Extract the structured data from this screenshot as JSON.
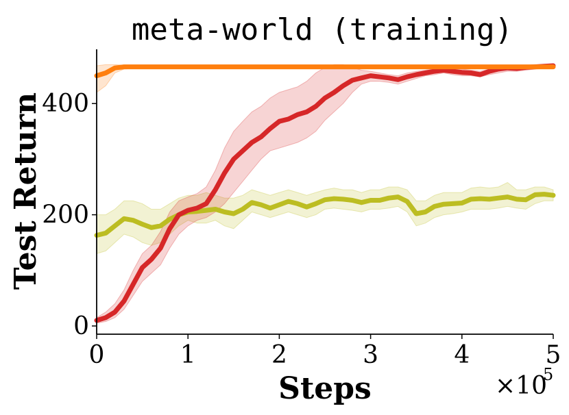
{
  "chart_data": {
    "type": "line",
    "title": "meta-world (training)",
    "xlabel": "Steps",
    "ylabel": "Test Return",
    "x_multiplier": "×10",
    "x_multiplier_exp": "5",
    "xlim": [
      0,
      500000
    ],
    "ylim": [
      0,
      500
    ],
    "x_ticks": [
      0,
      100000,
      200000,
      300000,
      400000,
      500000
    ],
    "x_tick_labels": [
      "0",
      "1",
      "2",
      "3",
      "4",
      "5"
    ],
    "y_ticks": [
      0,
      200,
      400
    ],
    "y_tick_labels": [
      "0",
      "200",
      "400"
    ],
    "grid": false,
    "legend": "none",
    "series": [
      {
        "color": "#bcbd22",
        "x": [
          0,
          10000,
          20000,
          30000,
          40000,
          50000,
          60000,
          70000,
          80000,
          90000,
          100000,
          110000,
          120000,
          130000,
          140000,
          150000,
          160000,
          170000,
          180000,
          190000,
          200000,
          210000,
          220000,
          230000,
          240000,
          250000,
          260000,
          270000,
          280000,
          290000,
          300000,
          310000,
          320000,
          330000,
          340000,
          350000,
          360000,
          370000,
          380000,
          390000,
          400000,
          410000,
          420000,
          430000,
          440000,
          450000,
          460000,
          470000,
          480000,
          490000,
          500000
        ],
        "y": [
          163,
          167,
          180,
          193,
          190,
          183,
          177,
          180,
          192,
          200,
          205,
          206,
          208,
          210,
          205,
          202,
          210,
          222,
          218,
          212,
          218,
          224,
          220,
          214,
          220,
          227,
          229,
          228,
          226,
          222,
          226,
          226,
          230,
          232,
          224,
          202,
          205,
          215,
          219,
          220,
          221,
          228,
          229,
          228,
          230,
          232,
          228,
          227,
          236,
          237,
          235
        ],
        "lower": [
          130,
          135,
          150,
          165,
          160,
          150,
          145,
          150,
          165,
          180,
          190,
          185,
          185,
          190,
          180,
          175,
          190,
          205,
          200,
          195,
          200,
          205,
          200,
          195,
          200,
          210,
          212,
          210,
          208,
          205,
          210,
          210,
          212,
          215,
          205,
          180,
          185,
          195,
          200,
          202,
          205,
          210,
          210,
          210,
          212,
          215,
          212,
          210,
          220,
          225,
          225
        ],
        "upper": [
          200,
          200,
          210,
          225,
          225,
          220,
          210,
          210,
          220,
          230,
          235,
          235,
          240,
          235,
          230,
          230,
          235,
          245,
          240,
          235,
          240,
          245,
          240,
          235,
          240,
          245,
          248,
          245,
          245,
          240,
          245,
          245,
          250,
          250,
          245,
          225,
          225,
          235,
          240,
          240,
          240,
          248,
          250,
          248,
          250,
          258,
          245,
          245,
          250,
          250,
          245
        ]
      },
      {
        "color": "#d62728",
        "x": [
          0,
          10000,
          20000,
          30000,
          40000,
          50000,
          60000,
          70000,
          80000,
          90000,
          100000,
          110000,
          120000,
          130000,
          140000,
          150000,
          160000,
          170000,
          180000,
          190000,
          200000,
          210000,
          220000,
          230000,
          240000,
          250000,
          260000,
          270000,
          280000,
          290000,
          300000,
          310000,
          320000,
          330000,
          340000,
          350000,
          360000,
          370000,
          380000,
          390000,
          400000,
          410000,
          420000,
          430000,
          440000,
          450000,
          460000,
          470000,
          480000,
          490000,
          500000
        ],
        "y": [
          10,
          15,
          25,
          45,
          75,
          105,
          120,
          140,
          175,
          200,
          208,
          212,
          220,
          245,
          275,
          300,
          315,
          330,
          340,
          355,
          368,
          372,
          380,
          385,
          395,
          410,
          420,
          432,
          442,
          446,
          450,
          448,
          446,
          443,
          448,
          452,
          455,
          458,
          460,
          458,
          456,
          455,
          452,
          458,
          462,
          464,
          463,
          465,
          466,
          467,
          468
        ],
        "lower": [
          5,
          8,
          15,
          30,
          55,
          80,
          95,
          110,
          140,
          165,
          180,
          190,
          195,
          205,
          220,
          240,
          260,
          280,
          300,
          315,
          320,
          325,
          330,
          338,
          350,
          370,
          385,
          400,
          420,
          435,
          440,
          440,
          438,
          435,
          440,
          445,
          450,
          452,
          455,
          452,
          450,
          450,
          448,
          452,
          455,
          458,
          458,
          460,
          462,
          463,
          464
        ],
        "upper": [
          15,
          25,
          40,
          65,
          100,
          130,
          145,
          170,
          205,
          225,
          232,
          238,
          250,
          280,
          320,
          350,
          368,
          385,
          395,
          410,
          420,
          425,
          430,
          440,
          455,
          465,
          470,
          470,
          465,
          460,
          458,
          455,
          452,
          450,
          455,
          458,
          460,
          462,
          465,
          464,
          462,
          460,
          458,
          462,
          466,
          468,
          468,
          469,
          470,
          470,
          471
        ]
      },
      {
        "color": "#ff7f0e",
        "x": [
          0,
          10000,
          20000,
          30000,
          40000,
          50000,
          60000,
          70000,
          80000,
          90000,
          100000,
          110000,
          120000,
          130000,
          140000,
          150000,
          160000,
          170000,
          180000,
          190000,
          200000,
          210000,
          220000,
          230000,
          240000,
          250000,
          260000,
          270000,
          280000,
          290000,
          300000,
          310000,
          320000,
          330000,
          340000,
          350000,
          360000,
          370000,
          380000,
          390000,
          400000,
          410000,
          420000,
          430000,
          440000,
          450000,
          460000,
          470000,
          480000,
          490000,
          500000
        ],
        "y": [
          450,
          455,
          464,
          466,
          466,
          466,
          466,
          466,
          466,
          466,
          466,
          466,
          466,
          466,
          466,
          466,
          466,
          466,
          466,
          466,
          466,
          466,
          466,
          466,
          466,
          466,
          466,
          466,
          466,
          466,
          466,
          466,
          466,
          466,
          466,
          466,
          466,
          466,
          466,
          466,
          466,
          466,
          466,
          466,
          466,
          466,
          466,
          466,
          466,
          466,
          466
        ],
        "lower": [
          420,
          432,
          455,
          462,
          463,
          464,
          464,
          464,
          464,
          464,
          464,
          464,
          464,
          464,
          464,
          464,
          464,
          464,
          464,
          464,
          464,
          464,
          464,
          464,
          464,
          464,
          464,
          464,
          464,
          464,
          464,
          464,
          464,
          464,
          464,
          464,
          464,
          464,
          464,
          464,
          464,
          464,
          464,
          464,
          464,
          464,
          464,
          464,
          464,
          464,
          464
        ],
        "upper": [
          468,
          470,
          470,
          469,
          468,
          468,
          468,
          468,
          468,
          468,
          468,
          468,
          468,
          468,
          468,
          468,
          468,
          468,
          468,
          468,
          468,
          468,
          468,
          468,
          468,
          468,
          468,
          468,
          468,
          468,
          468,
          468,
          468,
          468,
          468,
          468,
          468,
          468,
          468,
          468,
          468,
          468,
          468,
          468,
          468,
          468,
          468,
          468,
          468,
          468,
          468
        ]
      }
    ]
  }
}
